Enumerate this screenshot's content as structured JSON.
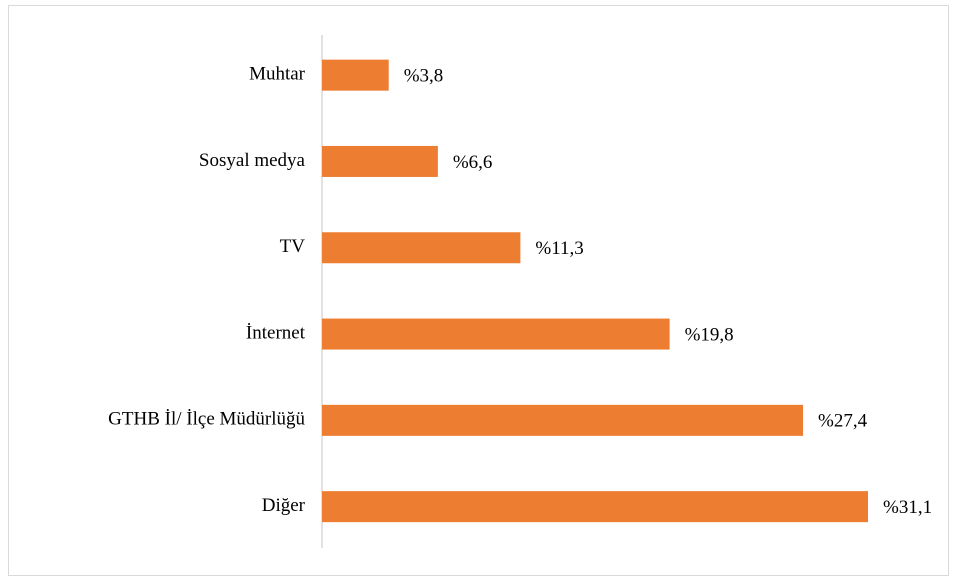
{
  "chart_data": {
    "type": "hbar",
    "categories": [
      "Muhtar",
      "Sosyal medya",
      "TV",
      "İnternet",
      "GTHB İl/ İlçe Müdürlüğü",
      "Diğer"
    ],
    "values": [
      3.8,
      6.6,
      11.3,
      19.8,
      27.4,
      31.1
    ],
    "value_labels": [
      "%3,8",
      "%6,6",
      "%11,3",
      "%19,8",
      "%27,4",
      "%31,1"
    ],
    "color": "#ed7d31"
  }
}
